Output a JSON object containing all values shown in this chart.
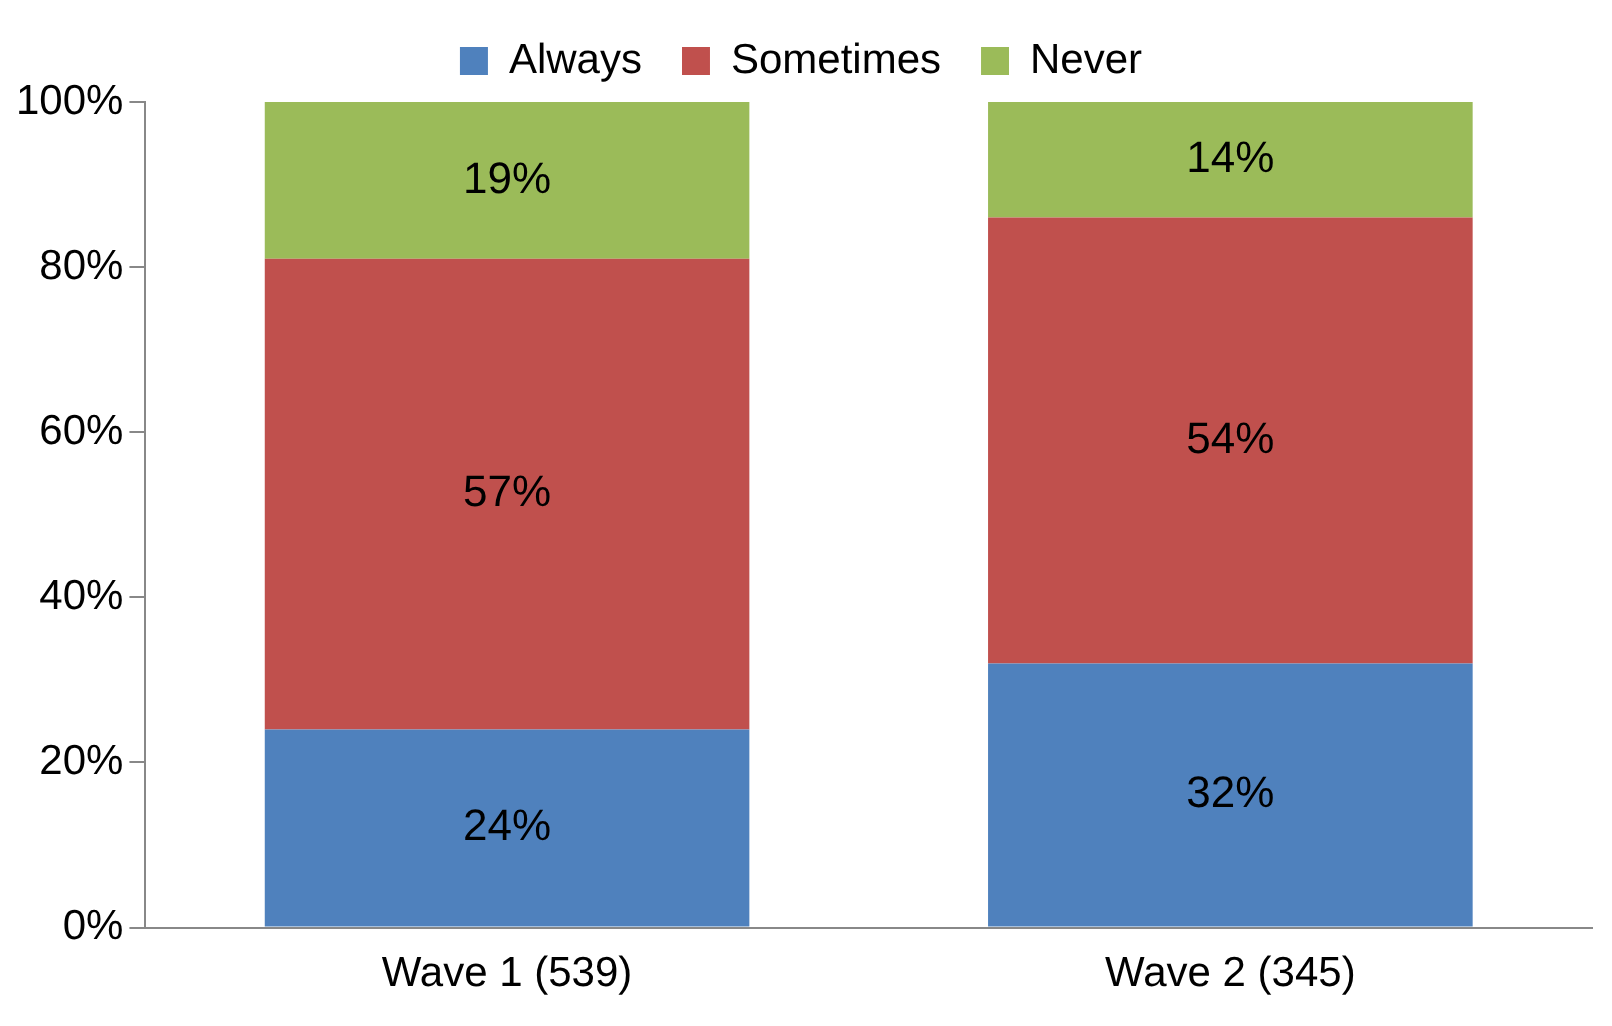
{
  "chart_data": {
    "type": "bar",
    "stacked": true,
    "categories": [
      "Wave 1 (539)",
      "Wave 2 (345)"
    ],
    "series": [
      {
        "name": "Always",
        "color": "#4f81bd",
        "values": [
          24,
          32
        ],
        "value_labels": [
          "24%",
          "32%"
        ]
      },
      {
        "name": "Sometimes",
        "color": "#c0504d",
        "values": [
          57,
          54
        ],
        "value_labels": [
          "57%",
          "54%"
        ]
      },
      {
        "name": "Never",
        "color": "#9bbb59",
        "values": [
          19,
          14
        ],
        "value_labels": [
          "19%",
          "14%"
        ]
      }
    ],
    "ylim": [
      0,
      100
    ],
    "yticks": [
      {
        "value": 0,
        "label": "0%"
      },
      {
        "value": 20,
        "label": "20%"
      },
      {
        "value": 40,
        "label": "40%"
      },
      {
        "value": 60,
        "label": "60%"
      },
      {
        "value": 80,
        "label": "80%"
      },
      {
        "value": 100,
        "label": "100%"
      }
    ],
    "grid": false,
    "legend": "top"
  }
}
